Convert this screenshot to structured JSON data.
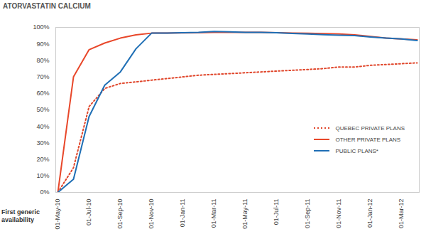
{
  "chart_data": {
    "type": "line",
    "title": "ATORVASTATIN CALCIUM",
    "x_label": "First generic availability",
    "categories": [
      "01-May-10",
      null,
      "01-Jul-10",
      null,
      "01-Sep-10",
      null,
      "01-Nov-10",
      null,
      "01-Jan-11",
      null,
      "01-Mar-11",
      null,
      "01-May-11",
      null,
      "01-Jul-11",
      null,
      "01-Sep-11",
      null,
      "01-Nov-11",
      null,
      "01-Jan-12",
      null,
      "01-Mar-12",
      null
    ],
    "series": [
      {
        "name": "QUEBEC PRIVATE PLANS",
        "color": "#e0462b",
        "line_style": "dotted",
        "values": [
          0,
          15,
          52,
          63,
          66,
          67,
          68,
          69,
          70,
          71,
          71.5,
          72,
          72.5,
          73,
          73.5,
          74,
          74.5,
          75,
          76,
          76,
          77,
          77.5,
          78,
          78.5
        ]
      },
      {
        "name": "OTHER PRIVATE PLANS",
        "color": "#e8472a",
        "line_style": "solid",
        "values": [
          0,
          70,
          86.5,
          90.5,
          93.5,
          95.5,
          96.5,
          96.5,
          96.7,
          96.8,
          97,
          97,
          97,
          97,
          96.8,
          96.6,
          96.4,
          96.2,
          96,
          95.5,
          94.5,
          93.5,
          93,
          92.5
        ]
      },
      {
        "name": "PUBLIC PLANS*",
        "color": "#1f6fb5",
        "line_style": "solid",
        "values": [
          0,
          8,
          46,
          65,
          73,
          87,
          96.5,
          96.6,
          96.8,
          97,
          97.5,
          97.3,
          97,
          97,
          96.8,
          96.3,
          96,
          95.6,
          95.3,
          95,
          94.2,
          93.5,
          93,
          92
        ]
      }
    ],
    "ylim": [
      0,
      100
    ],
    "yticks": [
      {
        "value": 0,
        "label": "0%"
      },
      {
        "value": 10,
        "label": "10%"
      },
      {
        "value": 20,
        "label": "20%"
      },
      {
        "value": 30,
        "label": "30%"
      },
      {
        "value": 40,
        "label": "40%"
      },
      {
        "value": 50,
        "label": "50%"
      },
      {
        "value": 60,
        "label": "60%"
      },
      {
        "value": 70,
        "label": "70%"
      },
      {
        "value": 80,
        "label": "80%"
      },
      {
        "value": 90,
        "label": "90%"
      },
      {
        "value": 100,
        "label": "100%"
      }
    ],
    "grid": false,
    "legend": "right"
  }
}
